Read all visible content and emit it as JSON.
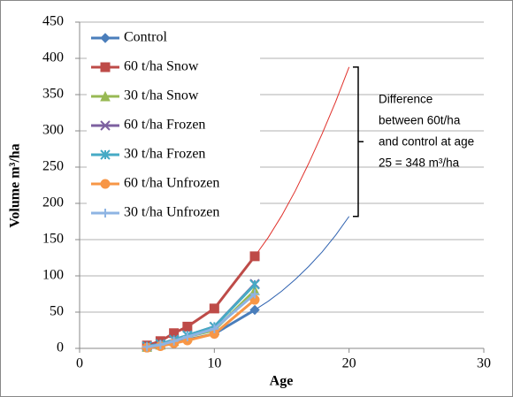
{
  "chart_data": {
    "type": "line",
    "x_label": "Age",
    "y_label": "Volume m³/ha",
    "x": [
      5,
      6,
      7,
      8,
      10,
      13
    ],
    "series": [
      {
        "name": "Control",
        "color": "#4a7ebb",
        "marker": "diamond",
        "values": [
          2,
          4,
          8,
          12,
          20,
          53
        ]
      },
      {
        "name": "60 t/ha Snow",
        "color": "#be4b48",
        "marker": "square",
        "values": [
          4,
          10,
          21,
          30,
          55,
          127
        ]
      },
      {
        "name": "30 t/ha Snow",
        "color": "#98b954",
        "marker": "triangle",
        "values": [
          2,
          5,
          10,
          16,
          25,
          80
        ]
      },
      {
        "name": "60 t/ha Frozen",
        "color": "#7d60a0",
        "marker": "x",
        "values": [
          3,
          6,
          12,
          18,
          30,
          89
        ]
      },
      {
        "name": "30 t/ha Frozen",
        "color": "#46aac5",
        "marker": "star",
        "values": [
          3,
          6,
          12,
          18,
          30,
          88
        ]
      },
      {
        "name": "60 t/ha Unfrozen",
        "color": "#f79646",
        "marker": "circle",
        "values": [
          1,
          3,
          7,
          11,
          20,
          67
        ]
      },
      {
        "name": "30 t/ha Unfrozen",
        "color": "#8eb4e3",
        "marker": "plus",
        "values": [
          2,
          5,
          10,
          16,
          27,
          75
        ]
      }
    ],
    "trendlines": [
      {
        "color": "#e0302a",
        "x": [
          13,
          14,
          15,
          16,
          17,
          18,
          19,
          20
        ],
        "values": [
          127,
          153,
          183,
          217,
          255,
          296,
          340,
          388
        ]
      },
      {
        "color": "#2f62b0",
        "x": [
          13,
          14,
          15,
          16,
          17,
          18,
          19,
          20
        ],
        "values": [
          53,
          65,
          79,
          95,
          113,
          133,
          156,
          182
        ]
      }
    ],
    "annotation": [
      "Difference",
      "between 60t/ha",
      "and control at age",
      "25 = 348 m³/ha"
    ],
    "xlim": [
      0,
      30
    ],
    "xticks": [
      0,
      10,
      20,
      30
    ],
    "ylim": [
      0,
      450
    ],
    "yticks": [
      0,
      50,
      100,
      150,
      200,
      250,
      300,
      350,
      400,
      450
    ],
    "grid": true
  }
}
